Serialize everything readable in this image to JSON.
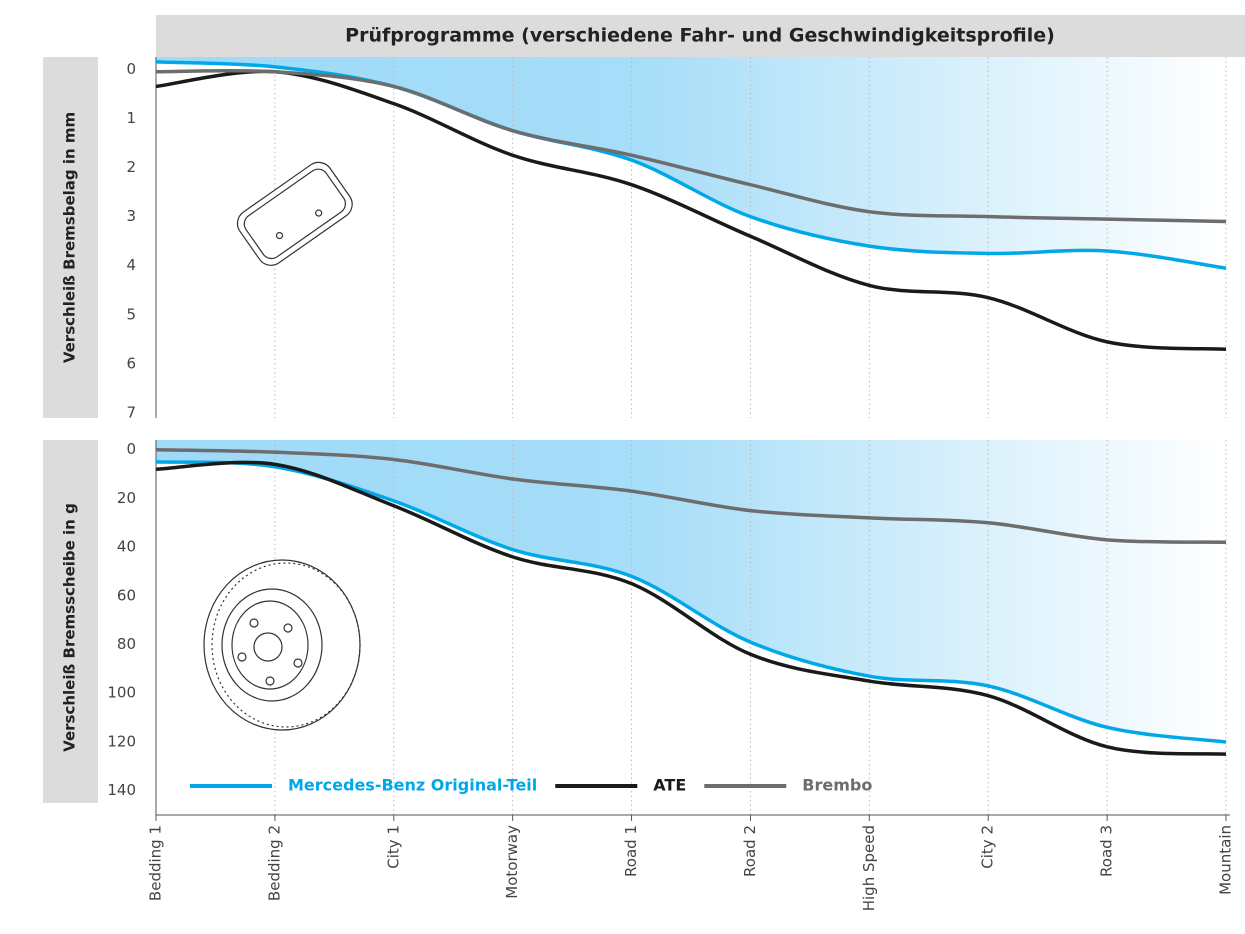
{
  "chart_data": [
    {
      "type": "line",
      "title": "Prüfprogramme (verschiedene Fahr- und Geschwindigkeitsprofile)",
      "ylabel": "Verschleiß Bremsbelag in mm",
      "ylim": [
        -0.25,
        7.1
      ],
      "yticks": [
        0,
        1,
        2,
        3,
        4,
        5,
        6,
        7
      ],
      "y_inverted": true,
      "grid": "x",
      "series": [
        {
          "color": "#00a8e8",
          "values": [
            -0.15,
            -0.05,
            0.35,
            1.25,
            1.85,
            3.0,
            3.6,
            3.75,
            3.7,
            4.05
          ],
          "fill": true
        },
        {
          "color": "#1a1a1a",
          "values": [
            0.35,
            0.05,
            0.7,
            1.75,
            2.35,
            3.4,
            4.4,
            4.65,
            5.55,
            5.7
          ]
        },
        {
          "color": "#6d6d6d",
          "values": [
            0.05,
            0.05,
            0.35,
            1.25,
            1.75,
            2.35,
            2.9,
            3.0,
            3.05,
            3.1
          ]
        }
      ]
    },
    {
      "type": "line",
      "ylabel": "Verschleiß Bremsscheibe in g",
      "categories": [
        "Bedding 1",
        "Bedding 2",
        "City 1",
        "Motorway",
        "Road 1",
        "Road 2",
        "High Speed",
        "City 2",
        "Road 3",
        "Mountain"
      ],
      "ylim": [
        -4,
        150
      ],
      "yticks": [
        0,
        20,
        40,
        60,
        80,
        100,
        120,
        140
      ],
      "y_inverted": true,
      "grid": "x",
      "legend": "lower left",
      "series": [
        {
          "name": "Mercedes-Benz Original-Teil",
          "color": "#00a8e8",
          "values": [
            5,
            7,
            21,
            41,
            52,
            79,
            93,
            97,
            114,
            120
          ],
          "fill": true
        },
        {
          "name": "ATE",
          "color": "#1a1a1a",
          "values": [
            8,
            6,
            23,
            44,
            55,
            84,
            95,
            101,
            122,
            125
          ]
        },
        {
          "name": "Brembo",
          "color": "#6d6d6d",
          "values": [
            0,
            1,
            4,
            12,
            17,
            25,
            28,
            30,
            37,
            38
          ]
        }
      ]
    }
  ]
}
